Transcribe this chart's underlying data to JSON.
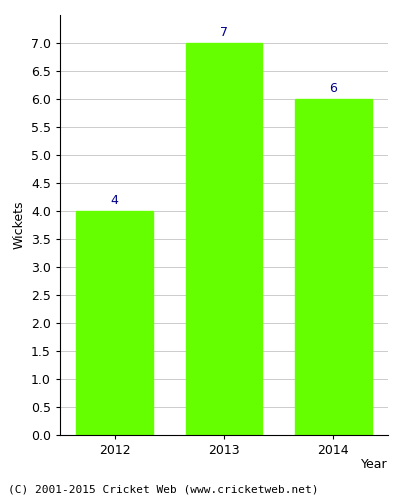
{
  "categories": [
    "2012",
    "2013",
    "2014"
  ],
  "values": [
    4,
    7,
    6
  ],
  "bar_color": "#66ff00",
  "bar_edgecolor": "#66ff00",
  "title": "",
  "xlabel": "Year",
  "ylabel": "Wickets",
  "ylim": [
    0,
    7.0
  ],
  "yticks": [
    0.0,
    0.5,
    1.0,
    1.5,
    2.0,
    2.5,
    3.0,
    3.5,
    4.0,
    4.5,
    5.0,
    5.5,
    6.0,
    6.5,
    7.0
  ],
  "annotation_color": "#00008b",
  "annotation_fontsize": 9,
  "axis_label_fontsize": 9,
  "tick_fontsize": 9,
  "footer_text": "(C) 2001-2015 Cricket Web (www.cricketweb.net)",
  "footer_fontsize": 8,
  "background_color": "#ffffff",
  "grid_color": "#cccccc"
}
